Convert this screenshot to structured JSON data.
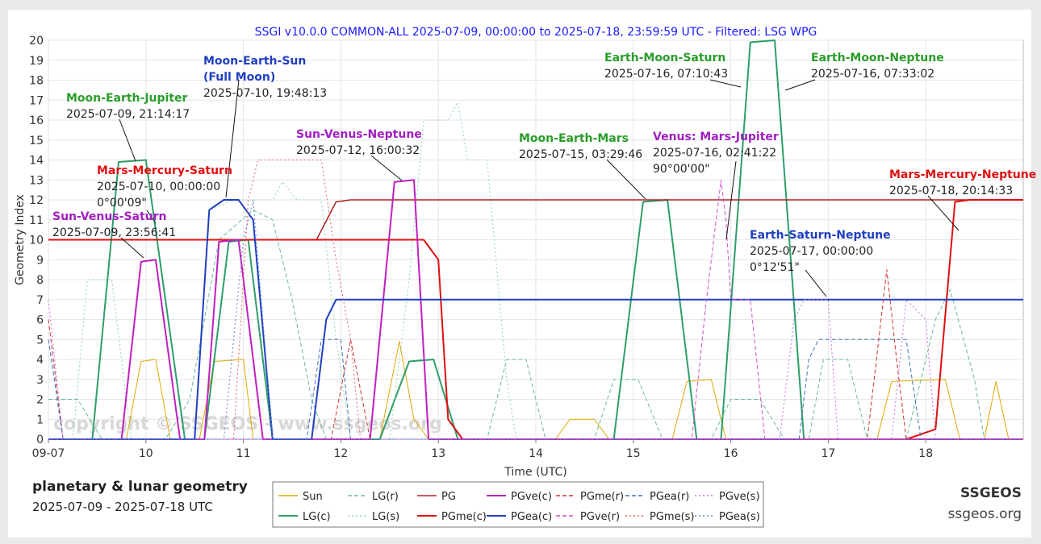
{
  "chart_data": {
    "type": "line",
    "title": "SSGI v10.0.0 COMMON-ALL 2025-07-09, 00:00:00 to 2025-07-18, 23:59:59 UTC - Filtered: LSG WPG",
    "xlabel": "Time (UTC)",
    "ylabel": "Geometry Index",
    "xlim": [
      0,
      10
    ],
    "ylim": [
      0,
      20
    ],
    "x_ticks": [
      0,
      1,
      2,
      3,
      4,
      5,
      6,
      7,
      8,
      9
    ],
    "x_tick_labels": [
      "09-07",
      "10",
      "11",
      "12",
      "13",
      "14",
      "15",
      "16",
      "17",
      "18"
    ],
    "y_ticks": [
      0,
      1,
      2,
      3,
      4,
      5,
      6,
      7,
      8,
      9,
      10,
      11,
      12,
      13,
      14,
      15,
      16,
      17,
      18,
      19,
      20
    ],
    "grid": true,
    "watermark": "copyright © SSGEOS - www.ssgeos.org",
    "series": [
      {
        "name": "Sun",
        "color": "#e0a800",
        "dash": "solid",
        "width": 1,
        "points": [
          [
            0,
            0
          ],
          [
            0.8,
            0
          ],
          [
            0.95,
            3.9
          ],
          [
            1.1,
            4
          ],
          [
            1.25,
            0
          ],
          [
            1.55,
            0
          ],
          [
            1.7,
            3.9
          ],
          [
            2.0,
            4
          ],
          [
            2.1,
            0
          ],
          [
            3.4,
            0
          ],
          [
            3.6,
            4.9
          ],
          [
            3.75,
            1
          ],
          [
            3.9,
            0
          ],
          [
            5.2,
            0
          ],
          [
            5.35,
            1
          ],
          [
            5.6,
            1
          ],
          [
            5.75,
            0
          ],
          [
            6.4,
            0
          ],
          [
            6.55,
            2.9
          ],
          [
            6.8,
            3
          ],
          [
            6.95,
            0
          ],
          [
            8.5,
            0
          ],
          [
            8.65,
            2.9
          ],
          [
            9.2,
            3
          ],
          [
            9.35,
            0
          ],
          [
            9.6,
            0
          ],
          [
            9.72,
            2.9
          ],
          [
            9.85,
            0
          ],
          [
            10,
            0
          ]
        ]
      },
      {
        "name": "LG(c)",
        "color": "#2e9e6b",
        "dash": "solid",
        "width": 2,
        "points": [
          [
            0,
            0
          ],
          [
            0.45,
            0
          ],
          [
            0.72,
            13.9
          ],
          [
            1.0,
            14
          ],
          [
            1.4,
            0
          ],
          [
            1.6,
            0
          ],
          [
            1.85,
            9.9
          ],
          [
            2.05,
            10
          ],
          [
            2.3,
            0
          ],
          [
            3.4,
            0
          ],
          [
            3.7,
            3.9
          ],
          [
            3.95,
            4
          ],
          [
            4.2,
            0
          ],
          [
            5.8,
            0
          ],
          [
            6.1,
            11.9
          ],
          [
            6.35,
            12
          ],
          [
            6.65,
            0
          ],
          [
            6.9,
            0
          ],
          [
            7.2,
            19.9
          ],
          [
            7.45,
            20
          ],
          [
            7.75,
            0
          ],
          [
            10,
            0
          ]
        ]
      },
      {
        "name": "LG(r)",
        "color": "#66bb99",
        "dash": "dash",
        "width": 1,
        "points": [
          [
            0,
            2
          ],
          [
            0.3,
            2
          ],
          [
            0.55,
            0
          ],
          [
            1.2,
            0
          ],
          [
            1.45,
            2
          ],
          [
            1.6,
            6
          ],
          [
            1.75,
            10
          ],
          [
            2.1,
            11.5
          ],
          [
            2.3,
            11
          ],
          [
            2.5,
            7
          ],
          [
            2.7,
            2
          ],
          [
            2.85,
            0
          ],
          [
            4.5,
            0
          ],
          [
            4.7,
            4
          ],
          [
            4.9,
            4
          ],
          [
            5.1,
            0
          ],
          [
            5.6,
            0
          ],
          [
            5.8,
            3
          ],
          [
            6.05,
            3
          ],
          [
            6.3,
            0
          ],
          [
            6.8,
            0
          ],
          [
            7.0,
            2
          ],
          [
            7.3,
            2
          ],
          [
            7.55,
            0
          ],
          [
            7.8,
            0
          ],
          [
            7.95,
            4
          ],
          [
            8.2,
            4
          ],
          [
            8.4,
            0
          ],
          [
            8.8,
            0
          ],
          [
            8.9,
            2
          ],
          [
            8.95,
            3
          ],
          [
            9.1,
            6
          ],
          [
            9.25,
            7.5
          ],
          [
            9.5,
            3
          ],
          [
            9.6,
            0
          ],
          [
            10,
            0
          ]
        ]
      },
      {
        "name": "LG(s)",
        "color": "#8fd0b5",
        "dash": "dot",
        "width": 1,
        "points": [
          [
            0,
            0
          ],
          [
            0.25,
            0
          ],
          [
            0.4,
            8
          ],
          [
            0.65,
            8
          ],
          [
            0.85,
            0
          ],
          [
            1.5,
            0
          ],
          [
            1.65,
            11.5
          ],
          [
            1.9,
            12
          ],
          [
            2.3,
            12
          ],
          [
            2.4,
            12.9
          ],
          [
            2.55,
            12
          ],
          [
            2.8,
            12
          ],
          [
            2.95,
            5
          ],
          [
            3.1,
            0
          ],
          [
            3.5,
            0
          ],
          [
            3.7,
            8
          ],
          [
            3.85,
            16
          ],
          [
            4.1,
            16
          ],
          [
            4.2,
            16.9
          ],
          [
            4.3,
            14
          ],
          [
            4.5,
            14
          ],
          [
            4.7,
            3
          ],
          [
            4.8,
            0
          ],
          [
            10,
            0
          ]
        ]
      },
      {
        "name": "PG",
        "color": "#b02020",
        "dash": "solid",
        "width": 1.5,
        "points": [
          [
            0,
            10
          ],
          [
            2.75,
            10
          ],
          [
            2.95,
            11.9
          ],
          [
            3.1,
            12
          ],
          [
            10,
            12
          ]
        ]
      },
      {
        "name": "PGme(c)",
        "color": "#e01010",
        "dash": "solid",
        "width": 2,
        "points": [
          [
            0,
            10
          ],
          [
            3.85,
            10
          ],
          [
            4.0,
            9
          ],
          [
            4.1,
            1
          ],
          [
            4.25,
            0
          ],
          [
            8.8,
            0
          ],
          [
            9.1,
            0.5
          ],
          [
            9.3,
            11.9
          ],
          [
            9.45,
            12
          ],
          [
            10,
            12
          ]
        ]
      },
      {
        "name": "PGve(c)",
        "color": "#c020c0",
        "dash": "solid",
        "width": 2,
        "points": [
          [
            0,
            0
          ],
          [
            0.75,
            0
          ],
          [
            0.95,
            8.9
          ],
          [
            1.1,
            9
          ],
          [
            1.35,
            0
          ],
          [
            1.6,
            0
          ],
          [
            1.75,
            9.9
          ],
          [
            1.95,
            10
          ],
          [
            2.2,
            0
          ],
          [
            3.3,
            0
          ],
          [
            3.55,
            12.9
          ],
          [
            3.75,
            13
          ],
          [
            3.9,
            0
          ],
          [
            10,
            0
          ]
        ]
      },
      {
        "name": "PGea(c)",
        "color": "#2040c0",
        "dash": "solid",
        "width": 2,
        "points": [
          [
            0,
            0
          ],
          [
            1.5,
            0
          ],
          [
            1.65,
            11.5
          ],
          [
            1.8,
            12
          ],
          [
            1.95,
            12
          ],
          [
            2.1,
            11
          ],
          [
            2.3,
            0
          ],
          [
            2.7,
            0
          ],
          [
            2.85,
            6
          ],
          [
            2.95,
            7
          ],
          [
            10,
            7
          ]
        ]
      },
      {
        "name": "PGme(r)",
        "color": "#d03030",
        "dash": "dash",
        "width": 1,
        "points": [
          [
            0,
            6
          ],
          [
            0.15,
            0
          ],
          [
            2.9,
            0
          ],
          [
            3.1,
            5
          ],
          [
            3.3,
            0
          ],
          [
            8.4,
            0
          ],
          [
            8.6,
            8.5
          ],
          [
            8.7,
            4
          ],
          [
            8.8,
            0
          ],
          [
            10,
            0
          ]
        ]
      },
      {
        "name": "PGve(r)",
        "color": "#d050d0",
        "dash": "dash",
        "width": 1,
        "points": [
          [
            0,
            0
          ],
          [
            6.6,
            0
          ],
          [
            6.75,
            7
          ],
          [
            6.9,
            13
          ],
          [
            6.95,
            11
          ],
          [
            7.0,
            7
          ],
          [
            7.1,
            7
          ],
          [
            7.2,
            7
          ],
          [
            7.35,
            0
          ],
          [
            10,
            0
          ]
        ]
      },
      {
        "name": "PGme(s)",
        "color": "#e06060",
        "dash": "dot",
        "width": 1,
        "points": [
          [
            0,
            0
          ],
          [
            1.9,
            0
          ],
          [
            2.05,
            12
          ],
          [
            2.15,
            14
          ],
          [
            2.8,
            14
          ],
          [
            2.95,
            9
          ],
          [
            3.1,
            5
          ],
          [
            3.2,
            0
          ],
          [
            10,
            0
          ]
        ]
      },
      {
        "name": "PGea(r)",
        "color": "#4070c0",
        "dash": "dash",
        "width": 1,
        "points": [
          [
            0,
            5
          ],
          [
            0.15,
            0
          ],
          [
            2.65,
            0
          ],
          [
            2.8,
            5
          ],
          [
            3.0,
            5
          ],
          [
            3.1,
            0
          ],
          [
            7.7,
            0
          ],
          [
            7.8,
            4
          ],
          [
            7.9,
            5
          ],
          [
            8.8,
            5
          ],
          [
            8.95,
            0
          ],
          [
            10,
            0
          ]
        ]
      },
      {
        "name": "PGve(s)",
        "color": "#c070e0",
        "dash": "dot",
        "width": 1,
        "points": [
          [
            0,
            7
          ],
          [
            0.15,
            0
          ],
          [
            7.5,
            0
          ],
          [
            7.65,
            6
          ],
          [
            7.75,
            7
          ],
          [
            8.0,
            7
          ],
          [
            8.1,
            0
          ],
          [
            8.65,
            0
          ],
          [
            8.8,
            7
          ],
          [
            9.0,
            6
          ],
          [
            9.1,
            0
          ],
          [
            10,
            0
          ]
        ]
      },
      {
        "name": "PGea(s)",
        "color": "#6080d0",
        "dash": "dot",
        "width": 1,
        "points": [
          [
            0,
            0
          ],
          [
            1.8,
            0
          ],
          [
            2.0,
            10
          ],
          [
            2.1,
            12
          ],
          [
            2.3,
            0
          ],
          [
            10,
            0
          ]
        ]
      }
    ],
    "annotations": [
      {
        "title": "Moon-Earth-Sun",
        "title2": "(Full Moon)",
        "lines": [
          "2025-07-10, 19:48:13"
        ],
        "color": "#2040c0"
      },
      {
        "title": "Moon-Earth-Jupiter",
        "lines": [
          "2025-07-09, 21:14:17"
        ],
        "color": "#2a9d2a"
      },
      {
        "title": "Mars-Mercury-Saturn",
        "lines": [
          "2025-07-10, 00:00:00",
          "0°00'09\""
        ],
        "color": "#e01010"
      },
      {
        "title": "Sun-Venus-Saturn",
        "lines": [
          "2025-07-09, 23:56:41"
        ],
        "color": "#a020c0"
      },
      {
        "title": "Sun-Venus-Neptune",
        "lines": [
          "2025-07-12, 16:00:32"
        ],
        "color": "#a020c0"
      },
      {
        "title": "Moon-Earth-Mars",
        "lines": [
          "2025-07-15, 03:29:46"
        ],
        "color": "#2a9d2a"
      },
      {
        "title": "Earth-Moon-Saturn",
        "lines": [
          "2025-07-16, 07:10:43"
        ],
        "color": "#2a9d2a"
      },
      {
        "title": "Earth-Moon-Neptune",
        "lines": [
          "2025-07-16, 07:33:02"
        ],
        "color": "#2a9d2a"
      },
      {
        "title": "Venus: Mars-Jupiter",
        "lines": [
          "2025-07-16, 02:41:22",
          "90°00'00\""
        ],
        "color": "#a020c0"
      },
      {
        "title": "Mars-Mercury-Neptune",
        "lines": [
          "2025-07-18, 20:14:33"
        ],
        "color": "#e01010"
      },
      {
        "title": "Earth-Saturn-Neptune",
        "lines": [
          "2025-07-17, 00:00:00",
          "0°12'51\""
        ],
        "color": "#2040c0"
      }
    ]
  },
  "footer": {
    "title": "planetary & lunar geometry",
    "dates": "2025-07-09 - 2025-07-18 UTC",
    "brand": "SSGEOS",
    "site": "ssgeos.org"
  }
}
